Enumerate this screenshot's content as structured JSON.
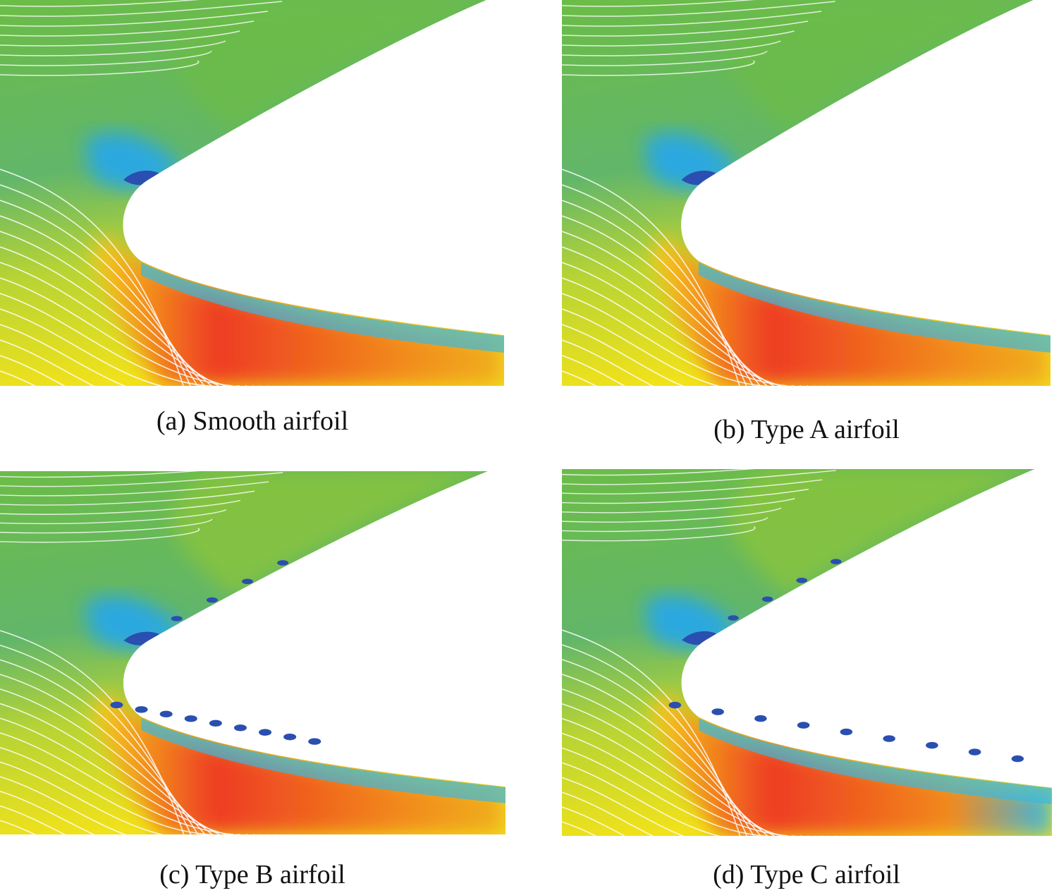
{
  "panels": [
    {
      "caption": "(a) Smooth airfoil"
    },
    {
      "caption": "(b) Type A airfoil"
    },
    {
      "caption": "(c) Type B airfoil"
    },
    {
      "caption": "(d) Type C airfoil"
    }
  ]
}
